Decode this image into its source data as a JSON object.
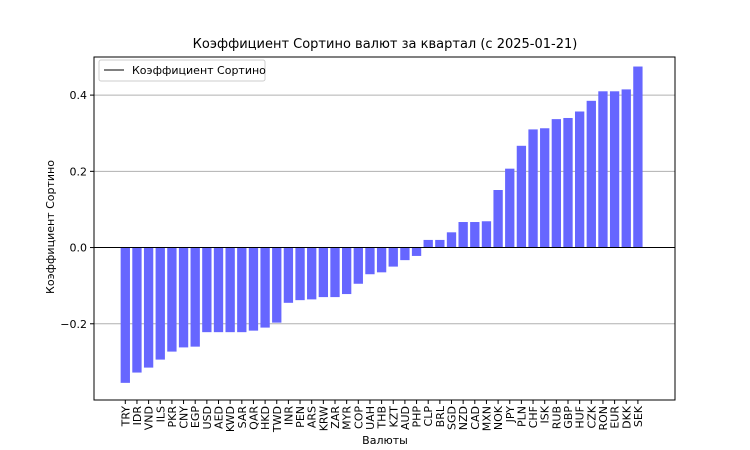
{
  "chart_data": {
    "type": "bar",
    "title": "Коэффициент Сортино валют за квартал (с 2025-01-21)",
    "xlabel": "Валюты",
    "ylabel": "Коэффициент Сортино",
    "ylim": [
      -0.4,
      0.5
    ],
    "yticks": [
      {
        "value": -0.2,
        "label": "−0.2"
      },
      {
        "value": 0.0,
        "label": "0.0"
      },
      {
        "value": 0.2,
        "label": "0.2"
      },
      {
        "value": 0.4,
        "label": "0.4"
      }
    ],
    "grid": true,
    "legend": {
      "position": "top-left",
      "label": "Коэффициент Сортино"
    },
    "bar_color": "#6666ff",
    "zero_line_color": "#000000",
    "categories": [
      "TRY",
      "IDR",
      "VND",
      "ILS",
      "PKR",
      "CNY",
      "EGP",
      "USD",
      "AED",
      "KWD",
      "SAR",
      "QAR",
      "HKD",
      "TWD",
      "INR",
      "PEN",
      "ARS",
      "KRW",
      "ZAR",
      "MYR",
      "COP",
      "UAH",
      "THB",
      "KZT",
      "AUD",
      "PHP",
      "CLP",
      "BRL",
      "SGD",
      "NZD",
      "CAD",
      "MXN",
      "NOK",
      "JPY",
      "PLN",
      "CHF",
      "ISK",
      "RUB",
      "GBP",
      "HUF",
      "CZK",
      "RON",
      "EUR",
      "DKK",
      "SEK"
    ],
    "values": [
      -0.355,
      -0.328,
      -0.315,
      -0.294,
      -0.273,
      -0.262,
      -0.26,
      -0.222,
      -0.222,
      -0.222,
      -0.222,
      -0.218,
      -0.21,
      -0.197,
      -0.145,
      -0.138,
      -0.136,
      -0.13,
      -0.13,
      -0.122,
      -0.095,
      -0.07,
      -0.065,
      -0.05,
      -0.033,
      -0.022,
      0.02,
      0.02,
      0.04,
      0.067,
      0.067,
      0.069,
      0.151,
      0.207,
      0.267,
      0.31,
      0.313,
      0.337,
      0.34,
      0.357,
      0.385,
      0.41,
      0.41,
      0.415,
      0.475
    ]
  }
}
